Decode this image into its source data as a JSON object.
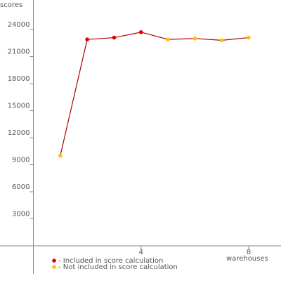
{
  "chart_data": {
    "type": "line",
    "y_label": "scores",
    "x_label": "warehouses",
    "x": [
      1,
      2,
      3,
      4,
      5,
      6,
      7,
      8
    ],
    "values": [
      10000,
      22900,
      23100,
      23700,
      22900,
      23000,
      22800,
      23100
    ],
    "included": [
      false,
      true,
      true,
      true,
      false,
      false,
      false,
      false
    ],
    "line_color": "#b00000",
    "legend": [
      {
        "name": "- Included in score calculation",
        "color": "#dd0000"
      },
      {
        "name": "- Not included in score calculation",
        "color": "#ffc000"
      }
    ],
    "xlim": [
      0,
      9.2
    ],
    "ylim": [
      -3000,
      27000
    ],
    "xticks": [
      4,
      8
    ],
    "yticks": [
      3000,
      6000,
      9000,
      12000,
      15000,
      18000,
      21000,
      24000
    ]
  }
}
